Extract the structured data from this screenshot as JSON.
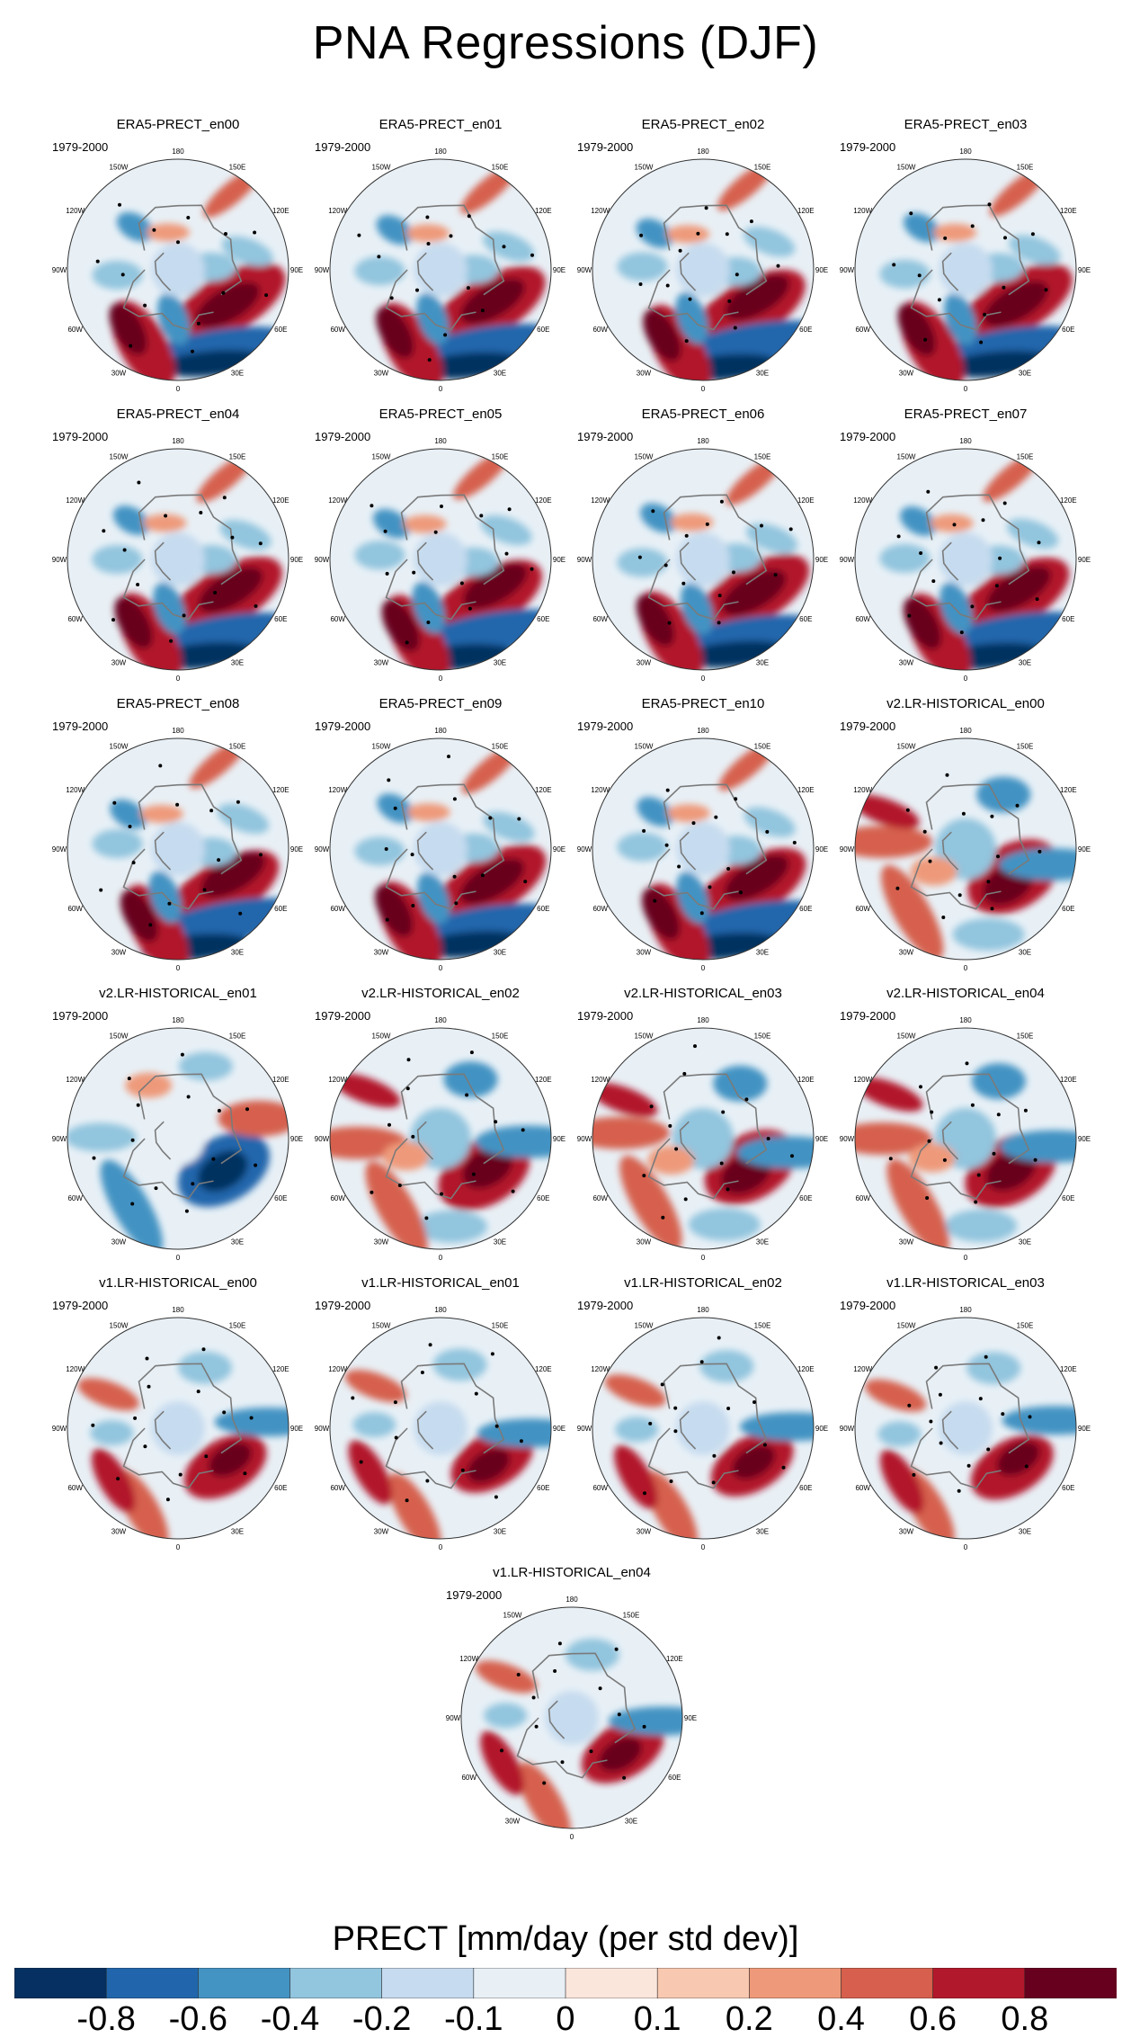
{
  "title": "PNA Regressions (DJF)",
  "period_label": "1979-2000",
  "longitude_labels": [
    "180",
    "150E",
    "120E",
    "90E",
    "60E",
    "30E",
    "0",
    "30W",
    "60W",
    "90W",
    "120W",
    "150W"
  ],
  "chart_data": {
    "type": "heatmap",
    "title": "PNA Regressions (DJF)",
    "projection": "north polar stereographic",
    "colorbar": {
      "label": "PRECT [mm/day (per std dev)]",
      "ticks": [
        "-0.8",
        "-0.6",
        "-0.4",
        "-0.2",
        "-0.1",
        "0",
        "0.1",
        "0.2",
        "0.4",
        "0.6",
        "0.8"
      ],
      "colors": [
        "#053061",
        "#2166ac",
        "#4393c3",
        "#92c5de",
        "#c6dbef",
        "#e8f0f6",
        "#fbe6dc",
        "#f8c8b0",
        "#ee9a7a",
        "#d6604d",
        "#b2182b",
        "#67001f"
      ]
    },
    "panels": [
      {
        "name": "ERA5-PRECT_en00",
        "group": "era5"
      },
      {
        "name": "ERA5-PRECT_en01",
        "group": "era5"
      },
      {
        "name": "ERA5-PRECT_en02",
        "group": "era5"
      },
      {
        "name": "ERA5-PRECT_en03",
        "group": "era5"
      },
      {
        "name": "ERA5-PRECT_en04",
        "group": "era5"
      },
      {
        "name": "ERA5-PRECT_en05",
        "group": "era5"
      },
      {
        "name": "ERA5-PRECT_en06",
        "group": "era5"
      },
      {
        "name": "ERA5-PRECT_en07",
        "group": "era5"
      },
      {
        "name": "ERA5-PRECT_en08",
        "group": "era5"
      },
      {
        "name": "ERA5-PRECT_en09",
        "group": "era5"
      },
      {
        "name": "ERA5-PRECT_en10",
        "group": "era5"
      },
      {
        "name": "v2.LR-HISTORICAL_en00",
        "group": "v2"
      },
      {
        "name": "v2.LR-HISTORICAL_en01",
        "group": "v2b"
      },
      {
        "name": "v2.LR-HISTORICAL_en02",
        "group": "v2"
      },
      {
        "name": "v2.LR-HISTORICAL_en03",
        "group": "v2"
      },
      {
        "name": "v2.LR-HISTORICAL_en04",
        "group": "v2"
      },
      {
        "name": "v1.LR-HISTORICAL_en00",
        "group": "v1"
      },
      {
        "name": "v1.LR-HISTORICAL_en01",
        "group": "v1"
      },
      {
        "name": "v1.LR-HISTORICAL_en02",
        "group": "v1"
      },
      {
        "name": "v1.LR-HISTORICAL_en03",
        "group": "v1"
      },
      {
        "name": "v1.LR-HISTORICAL_en04",
        "group": "v1"
      }
    ]
  }
}
